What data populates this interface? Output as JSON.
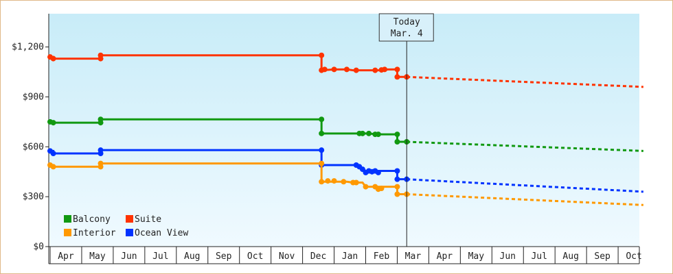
{
  "chart_data": {
    "type": "line",
    "today_label": "Today",
    "today_date": "Mar. 4",
    "today_index": 11.3,
    "months": [
      "Apr",
      "May",
      "Jun",
      "Jul",
      "Aug",
      "Sep",
      "Oct",
      "Nov",
      "Dec",
      "Jan",
      "Feb",
      "Mar",
      "Apr",
      "May",
      "Jun",
      "Jul",
      "Aug",
      "Sep",
      "Oct"
    ],
    "y_ticks": [
      {
        "v": 0,
        "label": "$0"
      },
      {
        "v": 300,
        "label": "$300"
      },
      {
        "v": 600,
        "label": "$600"
      },
      {
        "v": 900,
        "label": "$900"
      },
      {
        "v": 1200,
        "label": "$1,200"
      }
    ],
    "ylim": [
      0,
      1400
    ],
    "grid": false,
    "legend_placement": "bottom-left",
    "series": [
      {
        "name": "Suite",
        "color": "#ff3300",
        "history": [
          [
            0,
            1140
          ],
          [
            0.1,
            1140
          ],
          [
            0.1,
            1130
          ],
          [
            1.6,
            1130
          ],
          [
            1.6,
            1150
          ],
          [
            8.6,
            1150
          ],
          [
            8.6,
            1060
          ],
          [
            9.0,
            1065
          ],
          [
            9.4,
            1065
          ],
          [
            9.6,
            1060
          ],
          [
            10.2,
            1060
          ],
          [
            10.5,
            1060
          ],
          [
            10.7,
            1065
          ],
          [
            11.0,
            1065
          ],
          [
            11.0,
            1020
          ],
          [
            11.3,
            1020
          ]
        ],
        "markers": [
          [
            0,
            1140
          ],
          [
            0.1,
            1130
          ],
          [
            1.6,
            1130
          ],
          [
            1.6,
            1150
          ],
          [
            8.6,
            1150
          ],
          [
            8.6,
            1060
          ],
          [
            8.7,
            1065
          ],
          [
            9.0,
            1065
          ],
          [
            9.4,
            1065
          ],
          [
            9.7,
            1060
          ],
          [
            10.3,
            1060
          ],
          [
            10.5,
            1062
          ],
          [
            10.6,
            1065
          ],
          [
            11.0,
            1065
          ],
          [
            11.0,
            1020
          ],
          [
            11.3,
            1020
          ]
        ],
        "forecast": [
          [
            11.3,
            1020
          ],
          [
            18.8,
            960
          ]
        ]
      },
      {
        "name": "Balcony",
        "color": "#119911",
        "history": [
          [
            0,
            750
          ],
          [
            0.1,
            750
          ],
          [
            0.1,
            745
          ],
          [
            1.6,
            745
          ],
          [
            1.6,
            765
          ],
          [
            8.6,
            765
          ],
          [
            8.6,
            680
          ],
          [
            10.0,
            680
          ],
          [
            10.5,
            675
          ],
          [
            11.0,
            675
          ],
          [
            11.0,
            630
          ],
          [
            11.3,
            630
          ]
        ],
        "markers": [
          [
            0,
            750
          ],
          [
            0.1,
            745
          ],
          [
            1.6,
            745
          ],
          [
            1.6,
            765
          ],
          [
            8.6,
            765
          ],
          [
            8.6,
            680
          ],
          [
            9.8,
            680
          ],
          [
            9.9,
            680
          ],
          [
            10.1,
            680
          ],
          [
            10.3,
            675
          ],
          [
            10.4,
            675
          ],
          [
            11.0,
            675
          ],
          [
            11.0,
            630
          ],
          [
            11.3,
            630
          ]
        ],
        "forecast": [
          [
            11.3,
            630
          ],
          [
            18.8,
            575
          ]
        ]
      },
      {
        "name": "Ocean View",
        "color": "#0033ff",
        "history": [
          [
            0,
            575
          ],
          [
            0.1,
            575
          ],
          [
            0.1,
            560
          ],
          [
            1.6,
            560
          ],
          [
            1.6,
            580
          ],
          [
            8.6,
            580
          ],
          [
            8.6,
            490
          ],
          [
            9.7,
            490
          ],
          [
            9.9,
            470
          ],
          [
            10.0,
            455
          ],
          [
            10.3,
            455
          ],
          [
            10.5,
            455
          ],
          [
            11.0,
            455
          ],
          [
            11.0,
            405
          ],
          [
            11.3,
            405
          ]
        ],
        "markers": [
          [
            0,
            575
          ],
          [
            0.1,
            560
          ],
          [
            1.6,
            560
          ],
          [
            1.6,
            580
          ],
          [
            8.6,
            580
          ],
          [
            8.6,
            490
          ],
          [
            9.7,
            490
          ],
          [
            9.8,
            480
          ],
          [
            9.9,
            465
          ],
          [
            10.0,
            445
          ],
          [
            10.1,
            455
          ],
          [
            10.2,
            450
          ],
          [
            10.3,
            455
          ],
          [
            10.4,
            445
          ],
          [
            11.0,
            455
          ],
          [
            11.0,
            405
          ],
          [
            11.3,
            405
          ]
        ],
        "forecast": [
          [
            11.3,
            405
          ],
          [
            18.8,
            330
          ]
        ]
      },
      {
        "name": "Interior",
        "color": "#ff9900",
        "history": [
          [
            0,
            490
          ],
          [
            0.1,
            490
          ],
          [
            0.1,
            480
          ],
          [
            1.6,
            480
          ],
          [
            1.6,
            500
          ],
          [
            8.6,
            500
          ],
          [
            8.6,
            390
          ],
          [
            9.4,
            390
          ],
          [
            9.6,
            385
          ],
          [
            9.9,
            385
          ],
          [
            10.0,
            360
          ],
          [
            11.0,
            360
          ],
          [
            11.0,
            315
          ],
          [
            11.3,
            315
          ]
        ],
        "markers": [
          [
            0,
            490
          ],
          [
            0.1,
            480
          ],
          [
            1.6,
            480
          ],
          [
            1.6,
            500
          ],
          [
            8.6,
            500
          ],
          [
            8.6,
            390
          ],
          [
            8.8,
            395
          ],
          [
            9.0,
            395
          ],
          [
            9.3,
            390
          ],
          [
            9.6,
            385
          ],
          [
            9.7,
            385
          ],
          [
            10.0,
            360
          ],
          [
            10.3,
            360
          ],
          [
            10.4,
            345
          ],
          [
            10.5,
            350
          ],
          [
            11.0,
            360
          ],
          [
            11.0,
            315
          ],
          [
            11.3,
            315
          ]
        ],
        "forecast": [
          [
            11.3,
            315
          ],
          [
            18.8,
            250
          ]
        ]
      }
    ],
    "legend": [
      {
        "name": "Balcony",
        "color": "#119911"
      },
      {
        "name": "Suite",
        "color": "#ff3300"
      },
      {
        "name": "Interior",
        "color": "#ff9900"
      },
      {
        "name": "Ocean View",
        "color": "#0033ff"
      }
    ]
  }
}
